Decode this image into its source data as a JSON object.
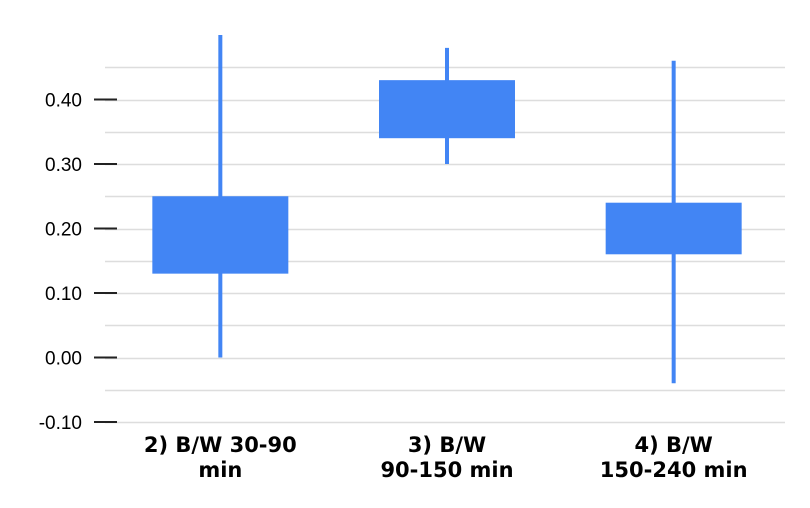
{
  "chart_data": {
    "type": "candlestick",
    "title": "",
    "xlabel": "",
    "ylabel": "",
    "ylim": [
      -0.1,
      0.45
    ],
    "y_ticks": [
      {
        "value": 0.4,
        "label": "0.40"
      },
      {
        "value": 0.3,
        "label": "0.30"
      },
      {
        "value": 0.2,
        "label": "0.20"
      },
      {
        "value": 0.1,
        "label": "0.10"
      },
      {
        "value": 0.0,
        "label": "0.00"
      },
      {
        "value": -0.1,
        "label": "-0.10"
      }
    ],
    "minor_gridlines": [
      0.45,
      0.35,
      0.25,
      0.15,
      0.05,
      -0.05
    ],
    "grid": true,
    "categories": [
      {
        "lines": [
          "2) B/W 30-90",
          "min"
        ]
      },
      {
        "lines": [
          "3) B/W",
          "90-150 min"
        ]
      },
      {
        "lines": [
          "4) B/W",
          "150-240 min"
        ]
      }
    ],
    "candles": [
      {
        "low": 0.0,
        "open": 0.13,
        "close": 0.25,
        "high": 0.5
      },
      {
        "low": 0.3,
        "open": 0.34,
        "close": 0.43,
        "high": 0.48
      },
      {
        "low": -0.04,
        "open": 0.16,
        "close": 0.24,
        "high": 0.46
      }
    ],
    "colors": {
      "candle": "#4285f4",
      "grid": "#dddddd",
      "tick": "#222222",
      "text": "#000000"
    }
  }
}
